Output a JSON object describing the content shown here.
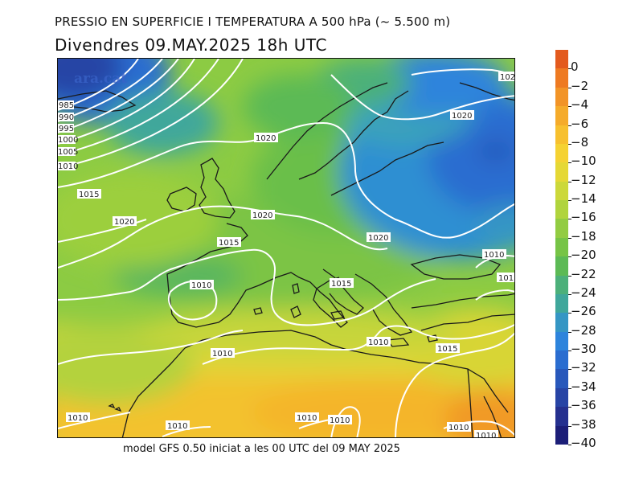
{
  "header": {
    "title": "PRESSIO EN SUPERFICIE I TEMPERATURA A 500 hPa (~ 5.500 m)",
    "subtitle": "Divendres  09.MAY.2025  18h  UTC"
  },
  "footer": {
    "model_info": "model GFS 0.50 iniciat a les 00 UTC del 09 MAY 2025"
  },
  "watermark": "ara.cat",
  "colorbar": {
    "labels": [
      "0",
      "−2",
      "−4",
      "−6",
      "−8",
      "−10",
      "−12",
      "−14",
      "−16",
      "−18",
      "−20",
      "−22",
      "−24",
      "−26",
      "−28",
      "−30",
      "−32",
      "−34",
      "−36",
      "−38",
      "−40"
    ],
    "colors": [
      "#e35a1e",
      "#ee7a22",
      "#f29427",
      "#f5ab2a",
      "#f7c02e",
      "#f5d232",
      "#e5d835",
      "#ccd83a",
      "#b0d43d",
      "#92cc42",
      "#76c446",
      "#5cba55",
      "#4cb07a",
      "#3fa79b",
      "#3596c4",
      "#2d84dc",
      "#2a6dd0",
      "#2858bb",
      "#2744a5",
      "#25308f",
      "#1c1e78"
    ]
  },
  "isobar_labels": {
    "top_right": "102",
    "scandinavia": "1020",
    "north_sea": "1020",
    "uk_channel": "1020",
    "poland": "1020",
    "atlantic_1015": "1015",
    "atlantic_1020": "1020",
    "bay_biscay": "1015",
    "iberia": "1010",
    "italy": "1015",
    "east_med_1015": "1015",
    "aegean": "1010",
    "turkey_a": "1010",
    "turkey_b": "101",
    "gibraltar": "1010",
    "canary": "1010",
    "sahara_a": "1010",
    "sahara_b": "1010",
    "sahara_c": "1010",
    "egypt": "1010",
    "egypt_b": "1010",
    "nw_985": "985",
    "nw_990": "990",
    "nw_995": "995",
    "nw_1000": "1000",
    "nw_1005": "1005",
    "nw_1010": "1010"
  }
}
